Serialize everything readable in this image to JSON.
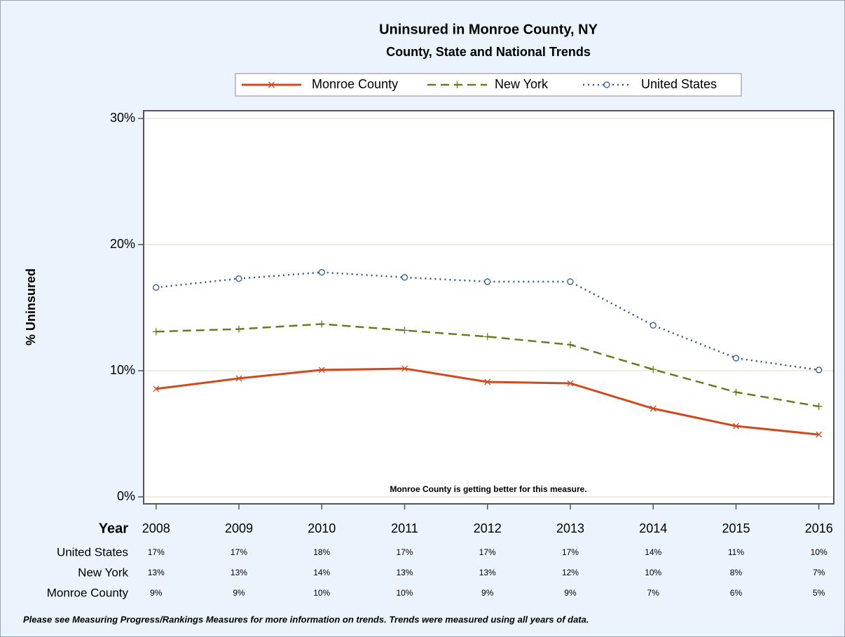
{
  "chart_data": {
    "type": "line",
    "title": "Uninsured in Monroe County, NY",
    "subtitle": "County, State and National Trends",
    "x_label": "Year",
    "y_label": "% Uninsured",
    "annotation": "Monroe County is getting better for this measure.",
    "footnote": "Please see Measuring Progress/Rankings Measures for more information on trends. Trends were measured using all years of data.",
    "x": [
      2008,
      2009,
      2010,
      2011,
      2012,
      2013,
      2014,
      2015,
      2016
    ],
    "xlim": [
      2007.85,
      2016.18
    ],
    "xticks": [
      2008,
      2009,
      2010,
      2011,
      2012,
      2013,
      2014,
      2015,
      2016
    ],
    "ylim": [
      0,
      30
    ],
    "yticks": [
      {
        "value": 0,
        "label": "0%"
      },
      {
        "value": 10,
        "label": "10%"
      },
      {
        "value": 20,
        "label": "20%"
      },
      {
        "value": 30,
        "label": "30%"
      }
    ],
    "grid": true,
    "series": [
      {
        "name": "Monroe County",
        "color": "#d04a1e",
        "line_style": "solid",
        "marker": "x",
        "values": [
          8.56,
          9.39,
          10.06,
          10.17,
          9.11,
          9.0,
          7.0,
          5.61,
          4.94
        ],
        "value_labels": [
          "9%",
          "9%",
          "10%",
          "10%",
          "9%",
          "9%",
          "7%",
          "6%",
          "5%"
        ]
      },
      {
        "name": "New York",
        "color": "#6b7a1f",
        "line_style": "dashed",
        "marker": "+",
        "values": [
          13.1,
          13.3,
          13.7,
          13.2,
          12.7,
          12.06,
          10.1,
          8.3,
          7.17
        ],
        "value_labels": [
          "13%",
          "13%",
          "14%",
          "13%",
          "13%",
          "12%",
          "10%",
          "8%",
          "7%"
        ]
      },
      {
        "name": "United States",
        "color": "#2a5b8a",
        "line_style": "dotted",
        "marker": "o",
        "values": [
          16.6,
          17.3,
          17.8,
          17.4,
          17.06,
          17.06,
          13.6,
          11.0,
          10.06
        ],
        "value_labels": [
          "17%",
          "17%",
          "18%",
          "17%",
          "17%",
          "17%",
          "14%",
          "11%",
          "10%"
        ]
      }
    ]
  }
}
